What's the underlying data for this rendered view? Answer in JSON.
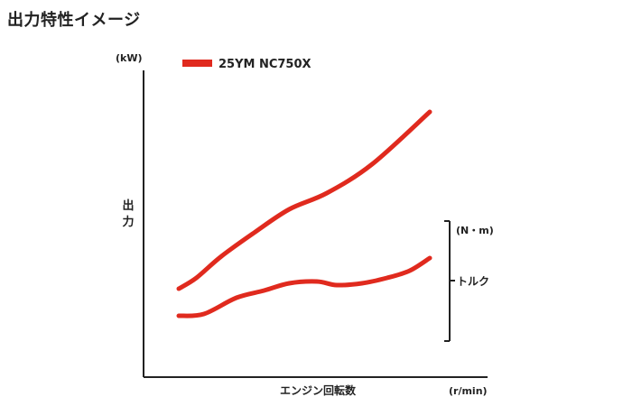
{
  "title": "出力特性イメージ",
  "chart_data": {
    "type": "line",
    "y_unit_left": "(kW)",
    "y_label_left": "出力",
    "y_unit_right": "(N・m)",
    "y_label_right": "トルク",
    "xlabel": "エンジン回転数",
    "x_unit": "(r/min)",
    "grid": false,
    "legend_position": "top-left",
    "color": "#e02a1e",
    "series": [
      {
        "name": "25YM NC750X",
        "role": "出力",
        "x": [
          0,
          0.07,
          0.17,
          0.3,
          0.44,
          0.59,
          0.77,
          1.0
        ],
        "values": [
          0.2,
          0.26,
          0.38,
          0.51,
          0.64,
          0.73,
          0.89,
          1.18
        ]
      },
      {
        "name": "",
        "role": "トルク",
        "x": [
          0,
          0.1,
          0.23,
          0.34,
          0.44,
          0.55,
          0.63,
          0.73,
          0.83,
          0.92,
          1.0
        ],
        "values": [
          0.05,
          0.06,
          0.15,
          0.19,
          0.23,
          0.24,
          0.22,
          0.23,
          0.26,
          0.3,
          0.37
        ]
      }
    ]
  }
}
